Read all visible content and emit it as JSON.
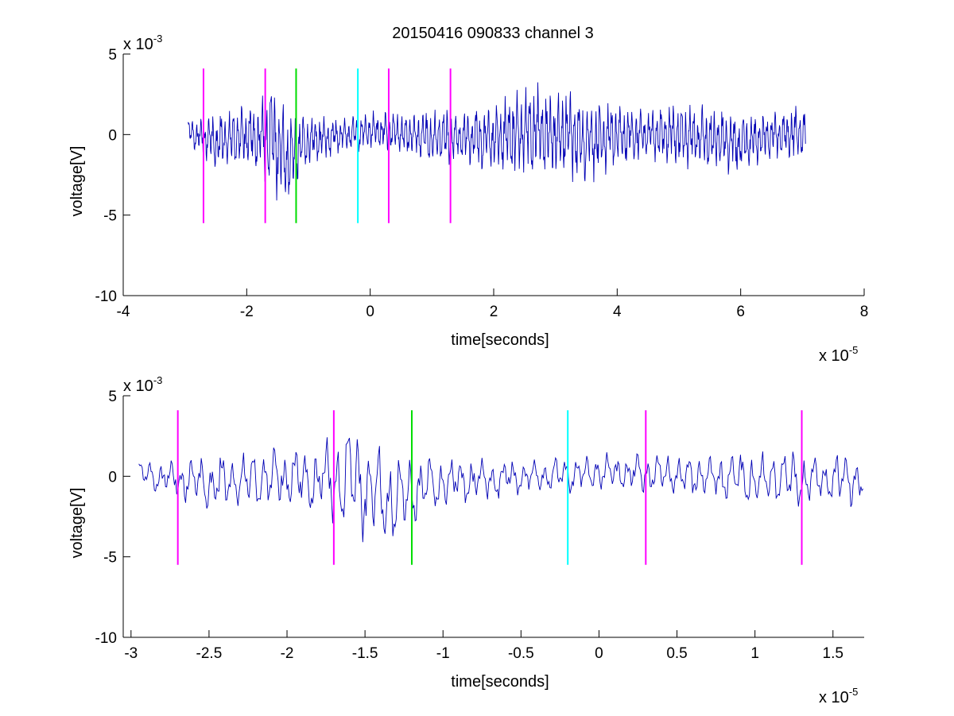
{
  "figure_title": "20150416 090833 channel 3",
  "colors": {
    "signal": "#0000b4",
    "marker_magenta": "#ff00ff",
    "marker_green": "#00dd00",
    "marker_cyan": "#00ffff",
    "axes": "#000000",
    "background": "#ffffff"
  },
  "chart_data": [
    {
      "type": "line",
      "title": "20150416 090833 channel 3",
      "xlabel": "time[seconds]",
      "ylabel": "voltage[V]",
      "x_exponent": "x 10",
      "x_exponent_power": "-5",
      "y_exponent": "x 10",
      "y_exponent_power": "-3",
      "xlim": [
        -4,
        8
      ],
      "ylim": [
        -10,
        5
      ],
      "xticks": [
        -4,
        -2,
        0,
        2,
        4,
        6,
        8
      ],
      "xtick_labels": [
        "-4",
        "-2",
        "0",
        "2",
        "4",
        "6",
        "8"
      ],
      "yticks": [
        -10,
        -5,
        0,
        5
      ],
      "ytick_labels": [
        "-10",
        "-5",
        "0",
        "5"
      ],
      "grid": false,
      "series": [
        {
          "color": "#0000b4",
          "x_range": [
            -2.95,
            7.05
          ],
          "approx_y_range": [
            -5.0,
            3.7
          ],
          "envelope": [
            [
              -2.95,
              1.0
            ],
            [
              -2.5,
              1.3
            ],
            [
              -2.0,
              2.0
            ],
            [
              -1.7,
              2.5
            ],
            [
              -1.6,
              3.6
            ],
            [
              -1.35,
              1.8
            ],
            [
              -1.0,
              1.2
            ],
            [
              -0.5,
              1.1
            ],
            [
              0.0,
              1.5
            ],
            [
              0.5,
              1.4
            ],
            [
              1.0,
              1.6
            ],
            [
              1.5,
              1.6
            ],
            [
              2.0,
              2.0
            ],
            [
              2.3,
              2.8
            ],
            [
              2.6,
              3.5
            ],
            [
              3.0,
              2.6
            ],
            [
              3.2,
              3.3
            ],
            [
              3.5,
              2.4
            ],
            [
              4.0,
              2.0
            ],
            [
              4.5,
              1.6
            ],
            [
              5.0,
              2.1
            ],
            [
              5.5,
              1.8
            ],
            [
              6.0,
              1.6
            ],
            [
              6.5,
              1.5
            ],
            [
              7.05,
              2.0
            ]
          ],
          "min_envelope": [
            [
              -2.95,
              -0.8
            ],
            [
              -2.5,
              -2.2
            ],
            [
              -2.0,
              -2.2
            ],
            [
              -1.7,
              -3.0
            ],
            [
              -1.6,
              -3.8
            ],
            [
              -1.35,
              -5.0
            ],
            [
              -1.0,
              -2.0
            ],
            [
              -0.5,
              -1.2
            ],
            [
              0.0,
              -1.0
            ],
            [
              0.5,
              -1.3
            ],
            [
              1.0,
              -2.0
            ],
            [
              1.5,
              -2.0
            ],
            [
              2.0,
              -2.5
            ],
            [
              2.3,
              -3.0
            ],
            [
              2.6,
              -2.8
            ],
            [
              3.0,
              -2.8
            ],
            [
              3.5,
              -3.2
            ],
            [
              4.0,
              -2.2
            ],
            [
              4.5,
              -1.6
            ],
            [
              5.0,
              -2.1
            ],
            [
              5.5,
              -2.3
            ],
            [
              6.0,
              -2.6
            ],
            [
              6.5,
              -1.6
            ],
            [
              7.05,
              -1.8
            ]
          ]
        }
      ],
      "markers": [
        {
          "x": -2.7,
          "color": "#ff00ff",
          "y_range": [
            -5.5,
            4.1
          ]
        },
        {
          "x": -1.7,
          "color": "#ff00ff",
          "y_range": [
            -5.5,
            4.1
          ]
        },
        {
          "x": -1.2,
          "color": "#00dd00",
          "y_range": [
            -5.5,
            4.1
          ]
        },
        {
          "x": -0.2,
          "color": "#00ffff",
          "y_range": [
            -5.5,
            4.1
          ]
        },
        {
          "x": 0.3,
          "color": "#ff00ff",
          "y_range": [
            -5.5,
            4.1
          ]
        },
        {
          "x": 1.3,
          "color": "#ff00ff",
          "y_range": [
            -5.5,
            4.1
          ]
        }
      ]
    },
    {
      "type": "line",
      "title": "",
      "xlabel": "time[seconds]",
      "ylabel": "voltage[V]",
      "x_exponent": "x 10",
      "x_exponent_power": "-5",
      "y_exponent": "x 10",
      "y_exponent_power": "-3",
      "xlim": [
        -3.05,
        1.7
      ],
      "ylim": [
        -10,
        5
      ],
      "xticks": [
        -3,
        -2.5,
        -2,
        -1.5,
        -1,
        -0.5,
        0,
        0.5,
        1,
        1.5
      ],
      "xtick_labels": [
        "-3",
        "-2.5",
        "-2",
        "-1.5",
        "-1",
        "-0.5",
        "0",
        "0.5",
        "1",
        "1.5"
      ],
      "yticks": [
        -10,
        -5,
        0,
        5
      ],
      "ytick_labels": [
        "-10",
        "-5",
        "0",
        "5"
      ],
      "grid": false,
      "series": [
        {
          "color": "#0000b4",
          "x_range": [
            -2.95,
            1.7
          ],
          "approx_y_range": [
            -5.0,
            3.7
          ],
          "envelope": [
            [
              -2.95,
              1.0
            ],
            [
              -2.7,
              0.8
            ],
            [
              -2.5,
              1.1
            ],
            [
              -2.2,
              1.1
            ],
            [
              -2.0,
              2.0
            ],
            [
              -1.85,
              2.2
            ],
            [
              -1.75,
              3.3
            ],
            [
              -1.7,
              3.0
            ],
            [
              -1.6,
              3.7
            ],
            [
              -1.45,
              2.5
            ],
            [
              -1.35,
              3.1
            ],
            [
              -1.2,
              2.2
            ],
            [
              -1.0,
              1.3
            ],
            [
              -0.5,
              1.0
            ],
            [
              -0.2,
              1.5
            ],
            [
              0.0,
              1.3
            ],
            [
              0.2,
              1.6
            ],
            [
              0.5,
              1.6
            ],
            [
              0.7,
              1.5
            ],
            [
              1.0,
              1.8
            ],
            [
              1.3,
              1.6
            ],
            [
              1.5,
              1.3
            ],
            [
              1.7,
              1.6
            ]
          ],
          "min_envelope": [
            [
              -2.95,
              -0.5
            ],
            [
              -2.7,
              -1.0
            ],
            [
              -2.5,
              -2.1
            ],
            [
              -2.2,
              -2.5
            ],
            [
              -2.0,
              -2.3
            ],
            [
              -1.85,
              -2.4
            ],
            [
              -1.75,
              -2.0
            ],
            [
              -1.65,
              -3.5
            ],
            [
              -1.5,
              -3.6
            ],
            [
              -1.35,
              -5.0
            ],
            [
              -1.25,
              -2.4
            ],
            [
              -1.2,
              -3.1
            ],
            [
              -1.0,
              -1.5
            ],
            [
              -0.5,
              -1.6
            ],
            [
              -0.2,
              -1.1
            ],
            [
              0.0,
              -1.2
            ],
            [
              0.3,
              -1.7
            ],
            [
              0.5,
              -1.3
            ],
            [
              0.8,
              -1.5
            ],
            [
              1.0,
              -1.4
            ],
            [
              1.3,
              -1.7
            ],
            [
              1.5,
              -2.1
            ],
            [
              1.7,
              -1.2
            ]
          ]
        }
      ],
      "markers": [
        {
          "x": -2.7,
          "color": "#ff00ff",
          "y_range": [
            -5.5,
            4.1
          ]
        },
        {
          "x": -1.7,
          "color": "#ff00ff",
          "y_range": [
            -5.5,
            4.1
          ]
        },
        {
          "x": -1.2,
          "color": "#00dd00",
          "y_range": [
            -5.5,
            4.1
          ]
        },
        {
          "x": -0.2,
          "color": "#00ffff",
          "y_range": [
            -5.5,
            4.1
          ]
        },
        {
          "x": 0.3,
          "color": "#ff00ff",
          "y_range": [
            -5.5,
            4.1
          ]
        },
        {
          "x": 1.3,
          "color": "#ff00ff",
          "y_range": [
            -5.5,
            4.1
          ]
        }
      ]
    }
  ]
}
